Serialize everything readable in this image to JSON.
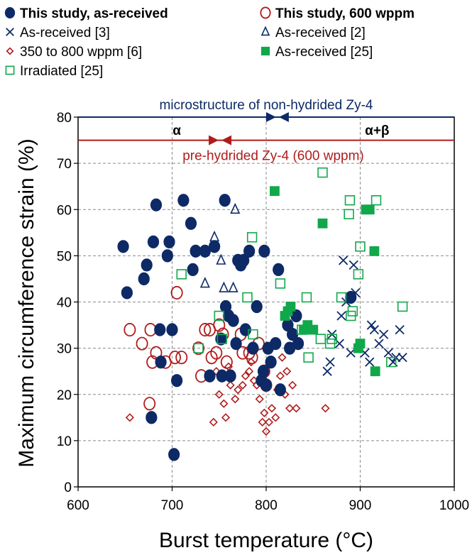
{
  "chart_data": {
    "type": "scatter",
    "xlabel": "Burst temperature (°C)",
    "ylabel": "Maximum circumference strain (%)",
    "xlim": [
      600,
      1000
    ],
    "ylim": [
      0,
      80
    ],
    "xticks": [
      600,
      700,
      800,
      900,
      1000
    ],
    "yticks": [
      0,
      10,
      20,
      30,
      40,
      50,
      60,
      70,
      80
    ],
    "grid": "dashed",
    "legend_position": "top",
    "series": [
      {
        "name": "This study, as-received",
        "marker": "filled-circle",
        "color": "#0d2a66",
        "points": [
          [
            648,
            52
          ],
          [
            652,
            42
          ],
          [
            670,
            45
          ],
          [
            673,
            48
          ],
          [
            678,
            15
          ],
          [
            680,
            53
          ],
          [
            683,
            61
          ],
          [
            687,
            34
          ],
          [
            688,
            27
          ],
          [
            695,
            50
          ],
          [
            697,
            53
          ],
          [
            700,
            34
          ],
          [
            702,
            7
          ],
          [
            705,
            23
          ],
          [
            712,
            62
          ],
          [
            720,
            57
          ],
          [
            722,
            47
          ],
          [
            725,
            51
          ],
          [
            735,
            51
          ],
          [
            740,
            24
          ],
          [
            745,
            52
          ],
          [
            752,
            32
          ],
          [
            753,
            24
          ],
          [
            756,
            62
          ],
          [
            757,
            39
          ],
          [
            760,
            37
          ],
          [
            762,
            24
          ],
          [
            765,
            36
          ],
          [
            768,
            31
          ],
          [
            770,
            49
          ],
          [
            773,
            48
          ],
          [
            776,
            49
          ],
          [
            778,
            34
          ],
          [
            782,
            51
          ],
          [
            786,
            30
          ],
          [
            790,
            39
          ],
          [
            795,
            23
          ],
          [
            797,
            25
          ],
          [
            798,
            51
          ],
          [
            800,
            22
          ],
          [
            802,
            30
          ],
          [
            805,
            27
          ],
          [
            810,
            31
          ],
          [
            813,
            47
          ],
          [
            815,
            21
          ],
          [
            823,
            35
          ],
          [
            825,
            30
          ],
          [
            828,
            33
          ],
          [
            832,
            37
          ],
          [
            834,
            31
          ],
          [
            890,
            41
          ]
        ]
      },
      {
        "name": "This study, 600 wppm",
        "marker": "open-circle",
        "color": "#b01c1c",
        "points": [
          [
            655,
            34
          ],
          [
            668,
            31
          ],
          [
            676,
            18
          ],
          [
            677,
            34
          ],
          [
            679,
            27
          ],
          [
            683,
            29
          ],
          [
            693,
            27
          ],
          [
            703,
            28
          ],
          [
            705,
            42
          ],
          [
            710,
            28
          ],
          [
            728,
            30
          ],
          [
            731,
            24
          ],
          [
            735,
            34
          ],
          [
            740,
            34
          ],
          [
            742,
            28
          ],
          [
            747,
            29
          ],
          [
            750,
            35
          ],
          [
            754,
            33
          ],
          [
            758,
            27
          ],
          [
            773,
            33
          ],
          [
            775,
            29
          ],
          [
            782,
            29
          ],
          [
            785,
            28
          ],
          [
            792,
            31
          ],
          [
            798,
            25
          ],
          [
            800,
            22
          ]
        ]
      },
      {
        "name": "As-received [3]",
        "marker": "x",
        "color": "#0d2a66",
        "points": [
          [
            865,
            25
          ],
          [
            868,
            27
          ],
          [
            870,
            33
          ],
          [
            878,
            31
          ],
          [
            880,
            37
          ],
          [
            882,
            49
          ],
          [
            885,
            40
          ],
          [
            890,
            29
          ],
          [
            893,
            48
          ],
          [
            895,
            42
          ],
          [
            900,
            31
          ],
          [
            905,
            29
          ],
          [
            910,
            27
          ],
          [
            912,
            35
          ],
          [
            915,
            34
          ],
          [
            920,
            31
          ],
          [
            925,
            33
          ],
          [
            930,
            29
          ],
          [
            935,
            27
          ],
          [
            938,
            28
          ],
          [
            942,
            34
          ],
          [
            945,
            28
          ]
        ]
      },
      {
        "name": "As-received [2]",
        "marker": "open-triangle",
        "color": "#0d2a66",
        "points": [
          [
            735,
            44
          ],
          [
            745,
            54
          ],
          [
            752,
            49
          ],
          [
            755,
            43
          ],
          [
            765,
            43
          ],
          [
            767,
            60
          ]
        ]
      },
      {
        "name": "350 to 800 wppm [6]",
        "marker": "open-diamond",
        "color": "#b01c1c",
        "points": [
          [
            655,
            15
          ],
          [
            744,
            14
          ],
          [
            747,
            25
          ],
          [
            750,
            20
          ],
          [
            755,
            18
          ],
          [
            757,
            15
          ],
          [
            760,
            26
          ],
          [
            762,
            22
          ],
          [
            767,
            19
          ],
          [
            770,
            21
          ],
          [
            775,
            22
          ],
          [
            778,
            24
          ],
          [
            782,
            25
          ],
          [
            784,
            27
          ],
          [
            787,
            23
          ],
          [
            790,
            22
          ],
          [
            793,
            19
          ],
          [
            796,
            14
          ],
          [
            798,
            16
          ],
          [
            800,
            12
          ],
          [
            803,
            14
          ],
          [
            806,
            17
          ],
          [
            810,
            15
          ],
          [
            812,
            21
          ],
          [
            815,
            24
          ],
          [
            817,
            28
          ],
          [
            820,
            20
          ],
          [
            822,
            25
          ],
          [
            825,
            17
          ],
          [
            828,
            22
          ],
          [
            832,
            17
          ],
          [
            863,
            17
          ]
        ]
      },
      {
        "name": "As-received [25]",
        "marker": "filled-square",
        "color": "#10a84a",
        "points": [
          [
            809,
            64
          ],
          [
            820,
            37
          ],
          [
            823,
            38
          ],
          [
            826,
            39
          ],
          [
            840,
            34
          ],
          [
            844,
            35
          ],
          [
            850,
            34
          ],
          [
            860,
            57
          ],
          [
            898,
            30
          ],
          [
            900,
            31
          ],
          [
            906,
            60
          ],
          [
            910,
            60
          ],
          [
            915,
            51
          ],
          [
            916,
            25
          ]
        ]
      },
      {
        "name": "Irradiated [25]",
        "marker": "open-square",
        "color": "#10a84a",
        "points": [
          [
            710,
            46
          ],
          [
            728,
            30
          ],
          [
            750,
            37
          ],
          [
            753,
            32
          ],
          [
            780,
            41
          ],
          [
            785,
            54
          ],
          [
            786,
            33
          ],
          [
            815,
            44
          ],
          [
            838,
            34
          ],
          [
            843,
            41
          ],
          [
            845,
            28
          ],
          [
            858,
            32
          ],
          [
            860,
            68
          ],
          [
            868,
            31
          ],
          [
            870,
            32
          ],
          [
            880,
            41
          ],
          [
            888,
            59
          ],
          [
            889,
            62
          ],
          [
            890,
            37
          ],
          [
            892,
            38
          ],
          [
            898,
            46
          ],
          [
            900,
            52
          ],
          [
            917,
            62
          ],
          [
            933,
            27
          ],
          [
            945,
            39
          ]
        ]
      }
    ],
    "annotations": [
      {
        "text": "microstructure of non-hydrided Zy-4",
        "color": "#0d2a66",
        "y": 80,
        "arrow_x": 812
      },
      {
        "text": "pre-hydrided Zy-4 (600 wppm)",
        "color": "#b01c1c",
        "y": 75,
        "arrow_x": 751
      },
      {
        "text": "α",
        "color": "#000000",
        "x": 705
      },
      {
        "text": "α+β",
        "color": "#000000",
        "x": 918
      }
    ]
  }
}
